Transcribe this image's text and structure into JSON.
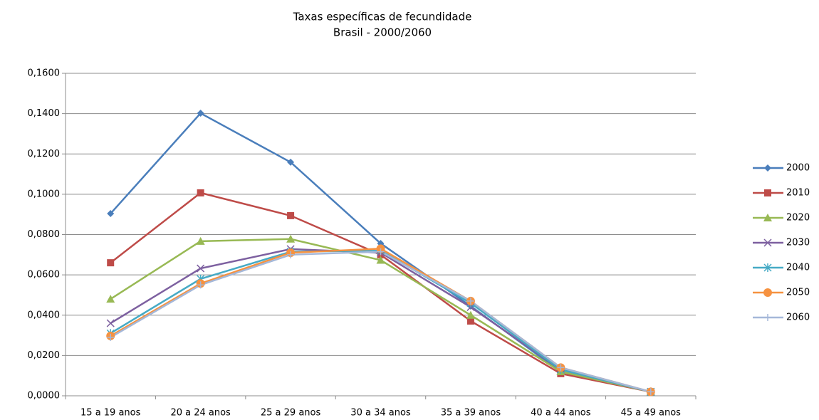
{
  "chart_data": {
    "type": "line",
    "title": "Taxas específicas de fecundidade",
    "subtitle": "Brasil - 2000/2060",
    "categories": [
      "15 a 19 anos",
      "20 a 24 anos",
      "25 a 29 anos",
      "30 a 34 anos",
      "35 a 39 anos",
      "40 a 44 anos",
      "45 a 49 anos"
    ],
    "series": [
      {
        "name": "2000",
        "color": "#4a7ebb",
        "marker": "diamond",
        "values": [
          0.0904,
          0.1402,
          0.1159,
          0.0756,
          0.0445,
          0.012,
          0.002
        ]
      },
      {
        "name": "2010",
        "color": "#be4b48",
        "marker": "square",
        "values": [
          0.066,
          0.1007,
          0.0894,
          0.07,
          0.0371,
          0.011,
          0.002
        ]
      },
      {
        "name": "2020",
        "color": "#98b954",
        "marker": "triangle",
        "values": [
          0.048,
          0.0767,
          0.0778,
          0.0673,
          0.04,
          0.012,
          0.002
        ]
      },
      {
        "name": "2030",
        "color": "#7d60a0",
        "marker": "x",
        "values": [
          0.036,
          0.0632,
          0.0728,
          0.071,
          0.044,
          0.013,
          0.002
        ]
      },
      {
        "name": "2040",
        "color": "#46aac5",
        "marker": "asterisk",
        "values": [
          0.031,
          0.058,
          0.0715,
          0.072,
          0.046,
          0.013,
          0.002
        ]
      },
      {
        "name": "2050",
        "color": "#f69240",
        "marker": "circle",
        "values": [
          0.0297,
          0.0557,
          0.071,
          0.073,
          0.047,
          0.014,
          0.002
        ]
      },
      {
        "name": "2060",
        "color": "#a5b8d9",
        "marker": "plus",
        "values": [
          0.029,
          0.055,
          0.07,
          0.0715,
          0.047,
          0.014,
          0.002
        ]
      }
    ],
    "ylim": [
      0,
      0.16
    ],
    "yticks": [
      {
        "value": 0,
        "label": "0,0000"
      },
      {
        "value": 0.02,
        "label": "0,0200"
      },
      {
        "value": 0.04,
        "label": "0,0400"
      },
      {
        "value": 0.06,
        "label": "0,0600"
      },
      {
        "value": 0.08,
        "label": "0,0800"
      },
      {
        "value": 0.1,
        "label": "0,1000"
      },
      {
        "value": 0.12,
        "label": "0,1200"
      },
      {
        "value": 0.14,
        "label": "0,1400"
      },
      {
        "value": 0.16,
        "label": "0,1600"
      }
    ],
    "grid": true,
    "legend": "right"
  }
}
